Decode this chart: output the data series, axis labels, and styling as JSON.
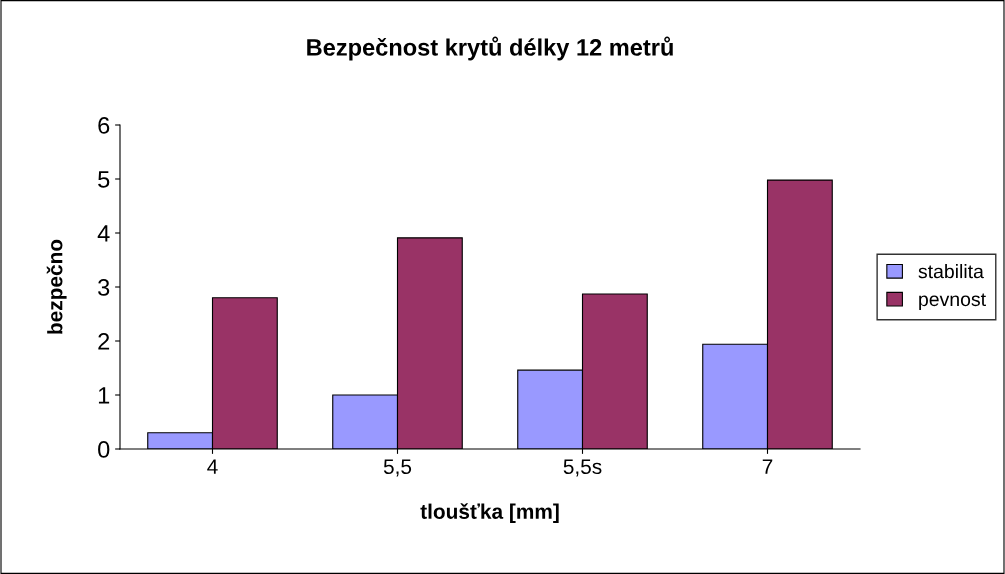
{
  "chart_data": {
    "type": "bar",
    "title": "Bezpečnost krytů délky 12 metrů",
    "xlabel": "tloušťka [mm]",
    "ylabel": "bezpečno",
    "categories": [
      "4",
      "5,5",
      "5,5s",
      "7"
    ],
    "series": [
      {
        "name": "stabilita",
        "color": "#9999ff",
        "values": [
          0.3,
          1.0,
          1.46,
          1.94
        ]
      },
      {
        "name": "pevnost",
        "color": "#993366",
        "values": [
          2.8,
          3.91,
          2.87,
          4.98
        ]
      }
    ],
    "ylim": [
      0,
      6
    ],
    "yticks": [
      0,
      1,
      2,
      3,
      4,
      5,
      6
    ],
    "grid": false,
    "legend": "right"
  }
}
